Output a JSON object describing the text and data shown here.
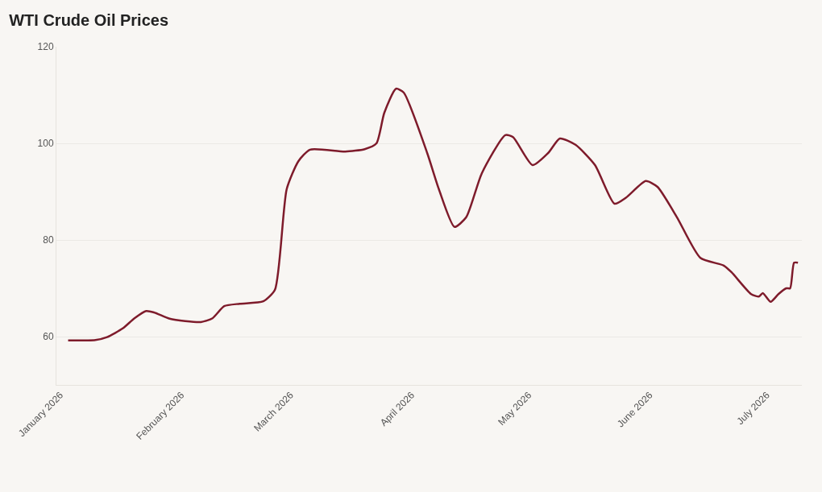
{
  "chart_data": {
    "type": "line",
    "title": "WTI Crude Oil Prices",
    "x": [
      "2026-01-03",
      "2026-01-10",
      "2026-01-13",
      "2026-01-17",
      "2026-01-20",
      "2026-01-23",
      "2026-01-25",
      "2026-01-29",
      "2026-02-02",
      "2026-02-06",
      "2026-02-09",
      "2026-02-12",
      "2026-02-16",
      "2026-02-22",
      "2026-02-25",
      "2026-02-28",
      "2026-03-03",
      "2026-03-06",
      "2026-03-15",
      "2026-03-20",
      "2026-03-23",
      "2026-03-25",
      "2026-03-28",
      "2026-03-30",
      "2026-04-05",
      "2026-04-08",
      "2026-04-12",
      "2026-04-15",
      "2026-04-19",
      "2026-04-25",
      "2026-04-27",
      "2026-05-02",
      "2026-05-06",
      "2026-05-09",
      "2026-05-13",
      "2026-05-18",
      "2026-05-23",
      "2026-05-26",
      "2026-05-31",
      "2026-06-03",
      "2026-06-08",
      "2026-06-14",
      "2026-06-20",
      "2026-06-22",
      "2026-06-27",
      "2026-06-29",
      "2026-06-30",
      "2026-07-02",
      "2026-07-04",
      "2026-07-06",
      "2026-07-07",
      "2026-07-08",
      "2026-07-09"
    ],
    "series": [
      {
        "color": "#7e1b2b",
        "values": [
          59.2,
          59.3,
          59.9,
          61.7,
          63.8,
          65.3,
          65,
          63.7,
          63.2,
          63,
          63.8,
          66.3,
          66.8,
          67.3,
          69.7,
          90.5,
          96.3,
          98.7,
          98.3,
          98.8,
          100,
          106.3,
          111.3,
          110.5,
          98,
          90.5,
          82.7,
          84.7,
          93.8,
          101.7,
          101.3,
          95.5,
          98,
          101,
          99.7,
          95.5,
          87.5,
          88.8,
          92.2,
          91,
          84.7,
          76.3,
          74.7,
          73.3,
          68.8,
          68.3,
          69,
          67.2,
          68.8,
          70,
          70,
          75.3,
          75.3
        ]
      }
    ],
    "xlim": [
      "2025-12-31",
      "2026-07-10"
    ],
    "ylim": [
      50,
      120
    ],
    "xticks": [
      {
        "value": "2026-01-01",
        "label": "January 2026"
      },
      {
        "value": "2026-02-01",
        "label": "February 2026"
      },
      {
        "value": "2026-03-01",
        "label": "March 2026"
      },
      {
        "value": "2026-04-01",
        "label": "April 2026"
      },
      {
        "value": "2026-05-01",
        "label": "May 2026"
      },
      {
        "value": "2026-06-01",
        "label": "June 2026"
      },
      {
        "value": "2026-07-01",
        "label": "July 2026"
      }
    ],
    "yticks": [
      60,
      80,
      100,
      120
    ],
    "grid": "y",
    "line_style": "solid"
  }
}
